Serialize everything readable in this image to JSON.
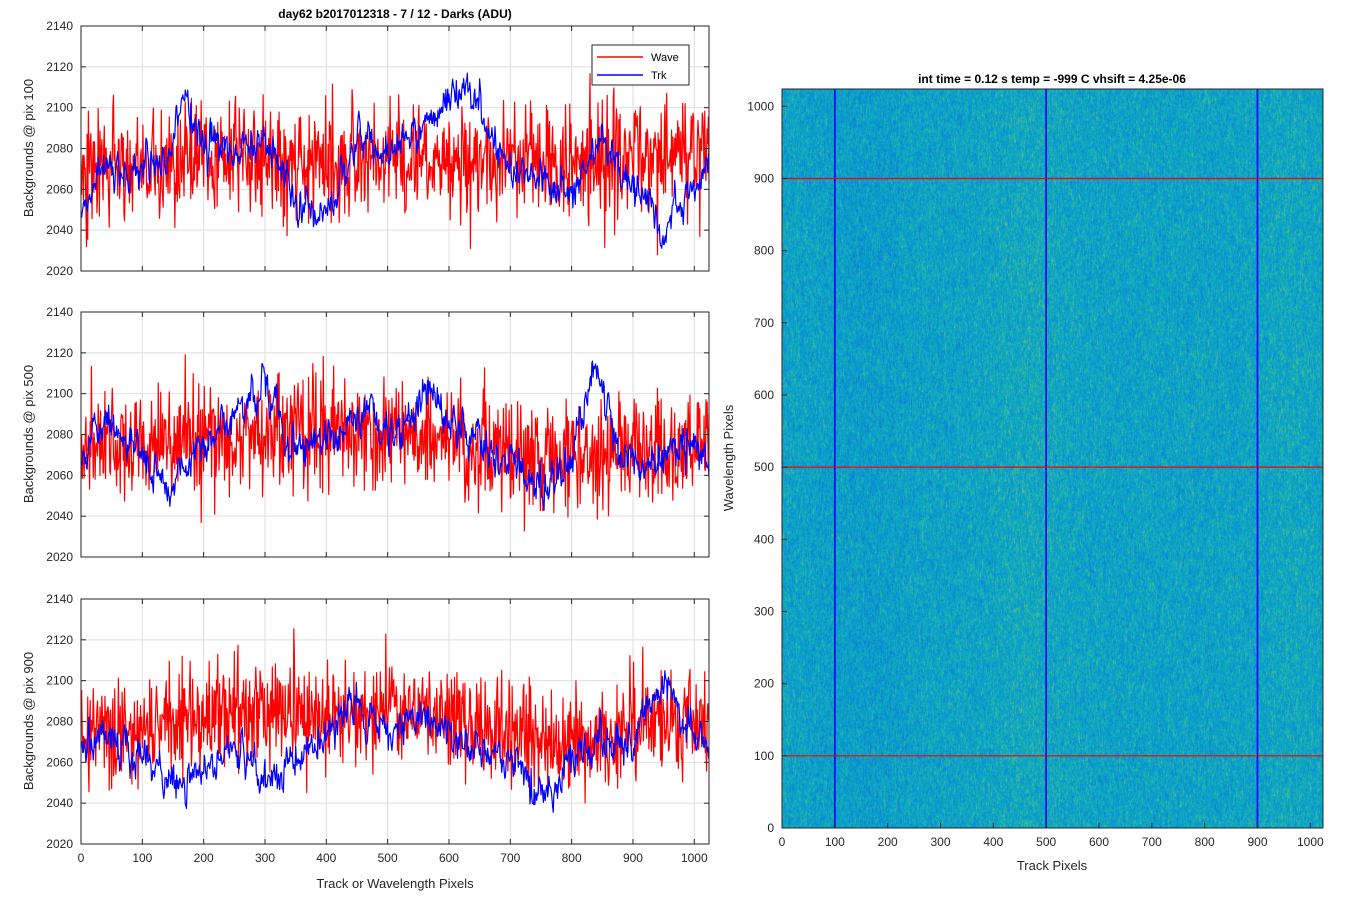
{
  "figure_title": "day62 b2017012318 - 7 / 12 - Darks (ADU)",
  "colors": {
    "wave": "#ff0000",
    "trk": "#0000ff",
    "grid": "#dedede",
    "axis": "#262626"
  },
  "chart_data": [
    {
      "type": "line",
      "title": "day62 b2017012318 - 7 / 12 - Darks (ADU)",
      "xlabel": "",
      "ylabel": "Backgrounds @ pix 100",
      "xlim": [
        0,
        1024
      ],
      "ylim": [
        2020,
        2140
      ],
      "xticks": [
        0,
        100,
        200,
        300,
        400,
        500,
        600,
        700,
        800,
        900,
        1000
      ],
      "yticks": [
        2020,
        2040,
        2060,
        2080,
        2100,
        2120,
        2140
      ],
      "grid": true,
      "legend": {
        "position": "top-right",
        "entries": [
          "Wave",
          "Trk"
        ]
      },
      "series": [
        {
          "name": "Wave",
          "color": "#ff0000",
          "noise_sd": 14,
          "knots": {
            "x": [
              0,
              100,
              200,
              300,
              400,
              500,
              600,
              700,
              800,
              900,
              1024
            ],
            "y": [
              2075,
              2072,
              2078,
              2075,
              2073,
              2075,
              2074,
              2072,
              2074,
              2076,
              2077
            ]
          }
        },
        {
          "name": "Trk",
          "color": "#0000ff",
          "noise_sd": 5,
          "knots": {
            "x": [
              0,
              30,
              80,
              140,
              170,
              200,
              250,
              300,
              350,
              400,
              450,
              500,
              560,
              620,
              700,
              760,
              800,
              850,
              900,
              950,
              1024
            ],
            "y": [
              2045,
              2070,
              2068,
              2075,
              2108,
              2085,
              2080,
              2082,
              2055,
              2045,
              2085,
              2078,
              2090,
              2112,
              2070,
              2062,
              2058,
              2085,
              2062,
              2040,
              2070
            ]
          }
        }
      ]
    },
    {
      "type": "line",
      "xlabel": "",
      "ylabel": "Backgrounds @ pix 500",
      "xlim": [
        0,
        1024
      ],
      "ylim": [
        2020,
        2140
      ],
      "xticks": [
        0,
        100,
        200,
        300,
        400,
        500,
        600,
        700,
        800,
        900,
        1000
      ],
      "yticks": [
        2020,
        2040,
        2060,
        2080,
        2100,
        2120,
        2140
      ],
      "grid": true,
      "series": [
        {
          "name": "Wave",
          "color": "#ff0000",
          "noise_sd": 13,
          "knots": {
            "x": [
              0,
              100,
              200,
              300,
              400,
              500,
              600,
              700,
              800,
              900,
              1024
            ],
            "y": [
              2074,
              2075,
              2078,
              2080,
              2083,
              2080,
              2077,
              2072,
              2068,
              2070,
              2075
            ]
          }
        },
        {
          "name": "Trk",
          "color": "#0000ff",
          "noise_sd": 5,
          "knots": {
            "x": [
              0,
              40,
              100,
              140,
              180,
              230,
              300,
              350,
              420,
              460,
              520,
              560,
              620,
              700,
              760,
              800,
              840,
              880,
              920,
              960,
              1024
            ],
            "y": [
              2070,
              2085,
              2075,
              2048,
              2070,
              2085,
              2105,
              2070,
              2080,
              2092,
              2075,
              2102,
              2082,
              2065,
              2052,
              2072,
              2115,
              2070,
              2060,
              2075,
              2068
            ]
          }
        }
      ]
    },
    {
      "type": "line",
      "xlabel": "Track or Wavelength Pixels",
      "ylabel": "Backgrounds @ pix 900",
      "xlim": [
        0,
        1024
      ],
      "ylim": [
        2020,
        2140
      ],
      "xticks": [
        0,
        100,
        200,
        300,
        400,
        500,
        600,
        700,
        800,
        900,
        1000
      ],
      "yticks": [
        2020,
        2040,
        2060,
        2080,
        2100,
        2120,
        2140
      ],
      "grid": true,
      "series": [
        {
          "name": "Wave",
          "color": "#ff0000",
          "noise_sd": 13,
          "knots": {
            "x": [
              0,
              100,
              200,
              300,
              400,
              500,
              600,
              700,
              800,
              900,
              1024
            ],
            "y": [
              2074,
              2078,
              2082,
              2084,
              2083,
              2085,
              2080,
              2074,
              2068,
              2078,
              2080
            ]
          }
        },
        {
          "name": "Trk",
          "color": "#0000ff",
          "noise_sd": 5,
          "knots": {
            "x": [
              0,
              30,
              80,
              150,
              200,
              250,
              300,
              350,
              420,
              450,
              500,
              560,
              620,
              700,
              760,
              800,
              850,
              900,
              950,
              1024
            ],
            "y": [
              2060,
              2075,
              2065,
              2050,
              2058,
              2070,
              2050,
              2062,
              2080,
              2090,
              2072,
              2082,
              2070,
              2062,
              2042,
              2065,
              2070,
              2072,
              2100,
              2065
            ]
          }
        }
      ]
    },
    {
      "type": "heatmap",
      "title": "int time = 0.12 s   temp = -999 C   vhsift = 4.25e-06",
      "xlabel": "Track Pixels",
      "ylabel": "Wavelength Pixels",
      "xlim": [
        0,
        1024
      ],
      "ylim": [
        0,
        1024
      ],
      "xticks": [
        0,
        100,
        200,
        300,
        400,
        500,
        600,
        700,
        800,
        900,
        1000
      ],
      "yticks": [
        0,
        100,
        200,
        300,
        400,
        500,
        600,
        700,
        800,
        900,
        1000
      ],
      "colormap": "parula",
      "overlay_vertical_lines_x": [
        100,
        500,
        900
      ],
      "overlay_horizontal_lines_y": [
        100,
        500,
        900
      ],
      "vertical_line_color": "#0000ff",
      "horizontal_line_color": "#ff0000"
    }
  ]
}
